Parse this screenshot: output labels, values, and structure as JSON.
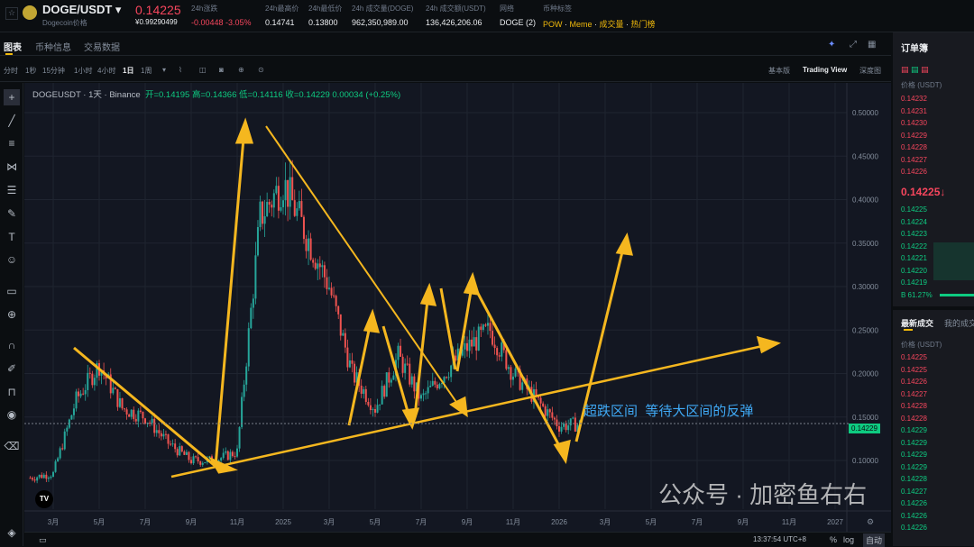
{
  "header": {
    "pair": "DOGE/USDT",
    "subtitle": "Dogecoin价格",
    "price": "0.14225",
    "price_cny": "¥0.99290499",
    "stats": [
      {
        "label": "24h涨跌",
        "value": "-0.00448 -3.05%"
      },
      {
        "label": "24h最高价",
        "value": "0.14741"
      },
      {
        "label": "24h最低价",
        "value": "0.13800"
      },
      {
        "label": "24h 成交量(DOGE)",
        "value": "962,350,989.00"
      },
      {
        "label": "24h 成交额(USDT)",
        "value": "136,426,206.06"
      },
      {
        "label": "网络",
        "value": "DOGE (2)"
      }
    ],
    "tags_label": "币种标签",
    "tags": [
      "POW",
      "Meme",
      "成交量",
      "热门榜"
    ]
  },
  "tabs": [
    "图表",
    "币种信息",
    "交易数据"
  ],
  "toolbar": {
    "intervals": [
      "分时",
      "1秒",
      "15分钟",
      "1小时",
      "4小时",
      "1日",
      "1周"
    ],
    "active": "1日",
    "views": [
      "基本版",
      "Trading View",
      "深度图"
    ]
  },
  "legend": {
    "symbol": "DOGEUSDT · 1天 · Binance",
    "open": "开=0.14195",
    "high": "高=0.14366",
    "low": "低=0.14116",
    "close": "收=0.14229",
    "change": "0.00034 (+0.25%)"
  },
  "chart_data": {
    "type": "candlestick",
    "ylim": [
      0.07,
      0.52
    ],
    "y_ticks": [
      "0.50000",
      "0.45000",
      "0.40000",
      "0.35000",
      "0.30000",
      "0.25000",
      "0.20000",
      "0.15000",
      "0.10000"
    ],
    "x_ticks": [
      "3月",
      "5月",
      "7月",
      "9月",
      "11月",
      "2025",
      "3月",
      "5月",
      "7月",
      "9月",
      "11月",
      "2026",
      "3月",
      "5月",
      "7月",
      "9月",
      "11月",
      "2027"
    ],
    "last_price": "0.14229",
    "approx_path": [
      [
        "2024-01",
        0.08
      ],
      [
        "2024-02",
        0.085
      ],
      [
        "2024-03",
        0.17
      ],
      [
        "2024-04",
        0.21
      ],
      [
        "2024-05",
        0.16
      ],
      [
        "2024-06",
        0.15
      ],
      [
        "2024-07",
        0.12
      ],
      [
        "2024-08",
        0.1
      ],
      [
        "2024-09",
        0.1
      ],
      [
        "2024-10",
        0.11
      ],
      [
        "2024-11",
        0.38
      ],
      [
        "2024-12",
        0.42
      ],
      [
        "2025-01",
        0.36
      ],
      [
        "2025-02",
        0.3
      ],
      [
        "2025-03",
        0.2
      ],
      [
        "2025-04",
        0.16
      ],
      [
        "2025-05",
        0.22
      ],
      [
        "2025-06",
        0.17
      ],
      [
        "2025-07",
        0.2
      ],
      [
        "2025-08",
        0.23
      ],
      [
        "2025-09",
        0.25
      ],
      [
        "2025-10",
        0.2
      ],
      [
        "2025-11",
        0.17
      ],
      [
        "2025-12",
        0.14
      ],
      [
        "2026-01",
        0.142
      ]
    ],
    "annotation": "超跌区间  等待大区间的反弹"
  },
  "watermark": "公众号 · 加密鱼右右",
  "orderbook": {
    "title": "订单簿",
    "price_header": "价格 (USDT)",
    "asks": [
      "0.14232",
      "0.14231",
      "0.14230",
      "0.14229",
      "0.14228",
      "0.14227",
      "0.14226"
    ],
    "mid": "0.14225↓",
    "bids": [
      "0.14225",
      "0.14224",
      "0.14223",
      "0.14222",
      "0.14221",
      "0.14220",
      "0.14219"
    ],
    "buy_ratio": "B 61.27%"
  },
  "trades": {
    "tabs": [
      "最新成交",
      "我的成交"
    ],
    "price_header": "价格 (USDT)",
    "rows": [
      {
        "p": "0.14225",
        "c": "red"
      },
      {
        "p": "0.14225",
        "c": "red"
      },
      {
        "p": "0.14226",
        "c": "red"
      },
      {
        "p": "0.14227",
        "c": "red"
      },
      {
        "p": "0.14228",
        "c": "red"
      },
      {
        "p": "0.14228",
        "c": "red"
      },
      {
        "p": "0.14229",
        "c": "green"
      },
      {
        "p": "0.14229",
        "c": "green"
      },
      {
        "p": "0.14229",
        "c": "green"
      },
      {
        "p": "0.14229",
        "c": "green"
      },
      {
        "p": "0.14228",
        "c": "green"
      },
      {
        "p": "0.14227",
        "c": "green"
      },
      {
        "p": "0.14226",
        "c": "green"
      },
      {
        "p": "0.14226",
        "c": "green"
      },
      {
        "p": "0.14226",
        "c": "green"
      }
    ]
  },
  "bottom": {
    "time": "13:37:54 UTC+8",
    "pct": "%",
    "log": "log",
    "auto": "自动"
  }
}
